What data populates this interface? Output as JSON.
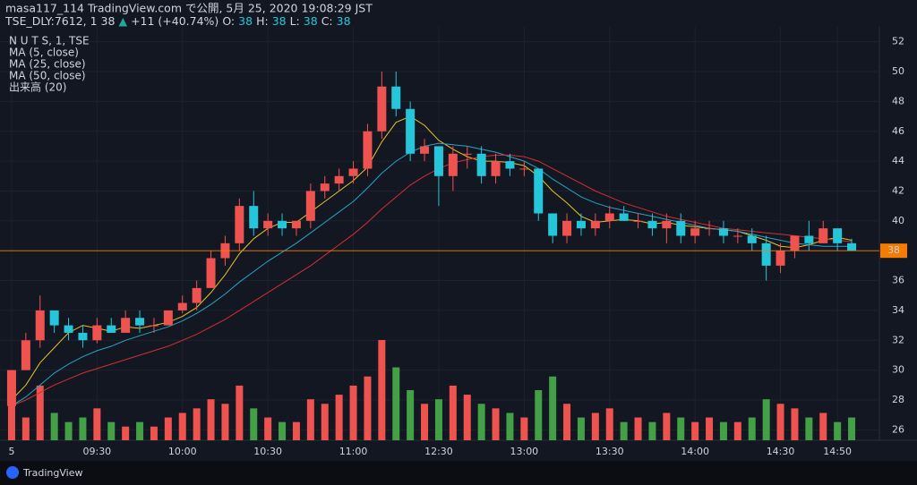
{
  "header": {
    "title": "masa117_114 TradingView.com で公開, 5月 25, 2020 19:08:29 JST",
    "quote": [
      {
        "text": "TSE_DLY:7612, 1 38",
        "color": "#d1d4dc"
      },
      {
        "text": "▲",
        "color": "#26a69a"
      },
      {
        "text": "+11 (+40.74%)",
        "color": "#d1d4dc"
      },
      {
        "text": "O:",
        "color": "#d1d4dc"
      },
      {
        "text": "38",
        "color": "#26c6da"
      },
      {
        "text": "H:",
        "color": "#d1d4dc"
      },
      {
        "text": "38",
        "color": "#26c6da"
      },
      {
        "text": "L:",
        "color": "#d1d4dc"
      },
      {
        "text": "38",
        "color": "#26c6da"
      },
      {
        "text": "C:",
        "color": "#d1d4dc"
      },
      {
        "text": "38",
        "color": "#26c6da"
      }
    ]
  },
  "chart_data": {
    "type": "candlestick",
    "symbol": "N U T S, 1, TSE",
    "up_color": "#ef5350",
    "down_color": "#26c6da",
    "volume_up_color": "#ef5350",
    "volume_down_color": "#43a047",
    "volume_name": "出来高 (20)",
    "open": [
      27.6,
      30,
      32,
      34,
      33,
      32.5,
      32,
      33,
      32.5,
      33.5,
      33,
      33,
      34,
      34.5,
      35.5,
      37.5,
      38.5,
      41,
      39.5,
      40,
      39.5,
      40,
      42,
      42.5,
      43,
      43.5,
      46,
      49,
      47.5,
      44.5,
      45,
      43,
      44.5,
      44.5,
      43,
      44,
      43.5,
      43.5,
      40.5,
      39,
      40,
      39.5,
      40,
      40.5,
      40,
      40,
      39.5,
      40,
      39,
      39.5,
      39.5,
      39,
      39,
      38.5,
      37,
      38,
      39,
      38.5,
      39.5,
      38.5
    ],
    "high": [
      30,
      32.5,
      35,
      34,
      33.5,
      33,
      33.5,
      33.5,
      34,
      34,
      33.5,
      34,
      35,
      36,
      38,
      39,
      41.5,
      42,
      40.5,
      40.5,
      40,
      42.5,
      43,
      43.5,
      44,
      46.5,
      50,
      50,
      48,
      45.5,
      45,
      45,
      45,
      45,
      44.5,
      44.5,
      44,
      43.5,
      40.5,
      40.5,
      40.5,
      40.5,
      41,
      41,
      40.5,
      40.5,
      40.5,
      40.5,
      40,
      40,
      40,
      39.5,
      39.5,
      39,
      38.5,
      39,
      40,
      40,
      39.5,
      38.8
    ],
    "low": [
      27.6,
      30,
      31.5,
      32.5,
      32,
      31.5,
      31.8,
      32.5,
      32.5,
      32.5,
      32.5,
      33,
      33.8,
      34,
      35.5,
      37,
      38,
      39,
      39,
      39,
      39,
      39.5,
      41.5,
      42,
      42.5,
      43,
      45.5,
      47,
      44,
      44,
      41,
      42,
      43.5,
      42.5,
      42.5,
      43,
      43,
      40,
      38.5,
      38.5,
      39,
      39,
      39.5,
      40,
      39.5,
      39,
      38.5,
      38.5,
      38.5,
      39,
      38.5,
      38.5,
      38,
      36,
      36.5,
      37.5,
      38,
      38.5,
      38,
      38
    ],
    "close": [
      30,
      32,
      34,
      33,
      32.5,
      32,
      33,
      32.5,
      33.5,
      33,
      33,
      34,
      34.5,
      35.5,
      37.5,
      38.5,
      41,
      39.5,
      40,
      39.5,
      40,
      42,
      42.5,
      43,
      43.5,
      46,
      49,
      47.5,
      44.5,
      45,
      43,
      44.5,
      44.5,
      43,
      44,
      43.5,
      43.5,
      40.5,
      39,
      40,
      39.5,
      40,
      40.5,
      40,
      40,
      39.5,
      40,
      39,
      39.5,
      39.5,
      39,
      39,
      38.5,
      37,
      38,
      39,
      38.5,
      39.5,
      38.5,
      38
    ],
    "volume": [
      40,
      25,
      60,
      30,
      20,
      25,
      35,
      20,
      15,
      20,
      15,
      25,
      30,
      35,
      45,
      40,
      60,
      35,
      25,
      20,
      20,
      45,
      40,
      50,
      60,
      70,
      110,
      80,
      55,
      40,
      45,
      60,
      50,
      40,
      35,
      30,
      25,
      55,
      70,
      40,
      25,
      30,
      35,
      20,
      25,
      20,
      30,
      25,
      20,
      25,
      20,
      20,
      25,
      45,
      40,
      35,
      25,
      30,
      20,
      25
    ],
    "series": [
      {
        "name": "MA (5, close)",
        "color": "#e6c229",
        "values": [
          28,
          29,
          30.5,
          31.5,
          32.5,
          33,
          32.8,
          32.6,
          32.9,
          32.8,
          33,
          33.2,
          33.6,
          34.2,
          35.2,
          36.4,
          37.8,
          38.8,
          39.5,
          39.9,
          39.9,
          40.6,
          41.3,
          42,
          42.7,
          43.6,
          45.3,
          46.6,
          47,
          46.4,
          45.4,
          44.8,
          44.3,
          44,
          44,
          43.9,
          43.7,
          43,
          42,
          41.2,
          40.3,
          39.9,
          40,
          40.1,
          40,
          39.8,
          39.9,
          39.7,
          39.6,
          39.5,
          39.4,
          39.3,
          39,
          38.7,
          38.3,
          38.2,
          38.4,
          38.7,
          38.9,
          38.7
        ]
      },
      {
        "name": "MA (25, close)",
        "color": "#26a4c8",
        "values": [
          27.6,
          28.2,
          29,
          29.8,
          30.4,
          30.9,
          31.3,
          31.6,
          32,
          32.3,
          32.6,
          32.9,
          33.3,
          33.8,
          34.4,
          35.1,
          35.9,
          36.6,
          37.3,
          37.9,
          38.5,
          39.2,
          39.9,
          40.6,
          41.3,
          42.2,
          43.2,
          44,
          44.6,
          45,
          45.2,
          45.1,
          45,
          44.8,
          44.6,
          44.3,
          44,
          43.5,
          42.8,
          42.2,
          41.6,
          41.2,
          40.9,
          40.7,
          40.5,
          40.3,
          40.1,
          39.9,
          39.7,
          39.5,
          39.4,
          39.3,
          39.1,
          38.9,
          38.7,
          38.5,
          38.4,
          38.3,
          38.3,
          38.3
        ]
      },
      {
        "name": "MA (50, close)",
        "color": "#d32f2f",
        "values": [
          27.6,
          28,
          28.5,
          29,
          29.4,
          29.8,
          30.1,
          30.4,
          30.7,
          31,
          31.3,
          31.6,
          32,
          32.4,
          32.9,
          33.4,
          34,
          34.6,
          35.2,
          35.8,
          36.4,
          37,
          37.7,
          38.4,
          39.1,
          39.9,
          40.8,
          41.6,
          42.4,
          43,
          43.5,
          43.9,
          44.1,
          44.3,
          44.4,
          44.4,
          44.3,
          44,
          43.5,
          43,
          42.5,
          42,
          41.6,
          41.2,
          40.9,
          40.6,
          40.3,
          40.1,
          39.9,
          39.7,
          39.5,
          39.4,
          39.3,
          39.2,
          39.1,
          39,
          38.9,
          38.8,
          38.7,
          38.6
        ]
      }
    ],
    "last_price": 38,
    "last_price_color": "#f57c00",
    "ylim": [
      25.3,
      53
    ],
    "yticks": [
      26,
      28,
      30,
      32,
      34,
      36,
      38,
      40,
      42,
      44,
      46,
      48,
      50,
      52
    ],
    "xticks": [
      {
        "value": 0,
        "label": "5"
      },
      {
        "value": 6,
        "label": "09:30"
      },
      {
        "value": 12,
        "label": "10:00"
      },
      {
        "value": 18,
        "label": "10:30"
      },
      {
        "value": 24,
        "label": "11:00"
      },
      {
        "value": 30,
        "label": "12:30"
      },
      {
        "value": 36,
        "label": "13:00"
      },
      {
        "value": 42,
        "label": "13:30"
      },
      {
        "value": 48,
        "label": "14:00"
      },
      {
        "value": 54,
        "label": "14:30"
      },
      {
        "value": 58,
        "label": "14:50"
      }
    ],
    "grid": true
  },
  "footer": {
    "brand": "TradingView"
  }
}
